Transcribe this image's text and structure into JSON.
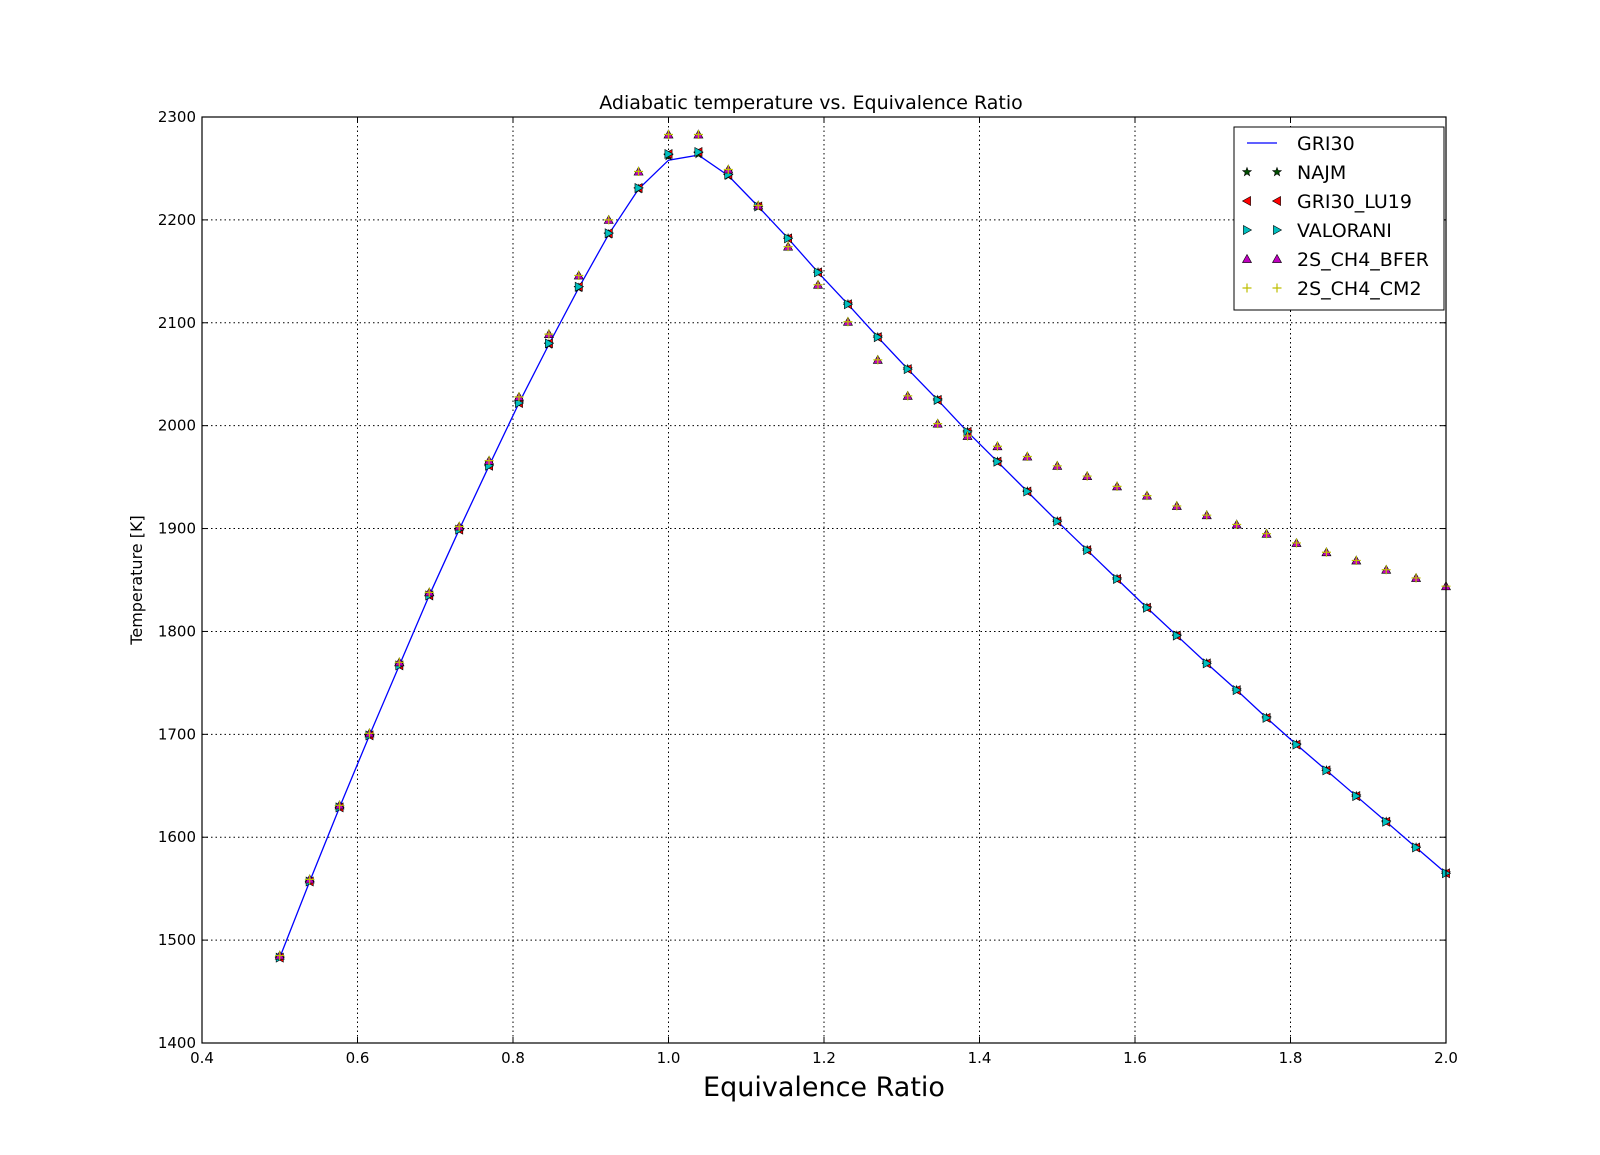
{
  "chart_data": {
    "type": "line",
    "title": "Adiabatic temperature vs. Equivalence Ratio",
    "xlabel": "Equivalence Ratio",
    "ylabel": "Temperature [K]",
    "xlim": [
      0.4,
      2.0
    ],
    "ylim": [
      1400,
      2300
    ],
    "xticks": [
      "0.4",
      "0.6",
      "0.8",
      "1.0",
      "1.2",
      "1.4",
      "1.6",
      "1.8",
      "2.0"
    ],
    "yticks": [
      "1400",
      "1500",
      "1600",
      "1700",
      "1800",
      "1900",
      "2000",
      "2100",
      "2200",
      "2300"
    ],
    "grid": true,
    "legend_position": "top-right",
    "x": [
      0.5,
      0.5385,
      0.5769,
      0.6154,
      0.6538,
      0.6923,
      0.7308,
      0.7692,
      0.8077,
      0.8462,
      0.8846,
      0.9231,
      0.9615,
      1.0,
      1.0385,
      1.0769,
      1.1154,
      1.1538,
      1.1923,
      1.2308,
      1.2692,
      1.3077,
      1.3462,
      1.3846,
      1.4231,
      1.4615,
      1.5,
      1.5385,
      1.5769,
      1.6154,
      1.6538,
      1.6923,
      1.7308,
      1.7692,
      1.8077,
      1.8462,
      1.8846,
      1.9231,
      1.9615,
      2.0
    ],
    "series": [
      {
        "name": "GRI30",
        "style": "line",
        "color": "#0000ff",
        "values": [
          1483,
          1557,
          1629,
          1699,
          1767,
          1835,
          1899,
          1961,
          2022,
          2079,
          2134,
          2186,
          2230,
          2258,
          2263,
          2243,
          2213,
          2182,
          2149,
          2118,
          2086,
          2055,
          2025,
          1994,
          1965,
          1936,
          1907,
          1879,
          1851,
          1823,
          1796,
          1769,
          1743,
          1716,
          1690,
          1665,
          1640,
          1615,
          1590,
          1565
        ]
      },
      {
        "name": "NAJM",
        "style": "marker",
        "marker": "star",
        "color": "#005000",
        "values": [
          1483,
          1557,
          1629,
          1699,
          1767,
          1835,
          1899,
          1961,
          2022,
          2079,
          2134,
          2186,
          2230,
          2262,
          2264,
          2243,
          2213,
          2182,
          2149,
          2118,
          2086,
          2055,
          2025,
          1994,
          1965,
          1936,
          1907,
          1879,
          1851,
          1823,
          1796,
          1769,
          1743,
          1716,
          1690,
          1665,
          1640,
          1615,
          1590,
          1565
        ]
      },
      {
        "name": "GRI30_LU19",
        "style": "marker",
        "marker": "triangle-left",
        "color": "#ff0000",
        "values": [
          1483,
          1557,
          1629,
          1699,
          1767,
          1835,
          1899,
          1961,
          2022,
          2080,
          2135,
          2187,
          2231,
          2264,
          2266,
          2244,
          2213,
          2182,
          2149,
          2118,
          2086,
          2055,
          2025,
          1994,
          1965,
          1936,
          1907,
          1879,
          1851,
          1823,
          1796,
          1769,
          1743,
          1716,
          1690,
          1665,
          1640,
          1615,
          1590,
          1565
        ]
      },
      {
        "name": "VALORANI",
        "style": "marker",
        "marker": "triangle-right",
        "color": "#00bfbf",
        "values": [
          1483,
          1557,
          1629,
          1699,
          1767,
          1835,
          1899,
          1961,
          2022,
          2080,
          2135,
          2187,
          2231,
          2264,
          2266,
          2244,
          2213,
          2182,
          2149,
          2118,
          2086,
          2055,
          2025,
          1994,
          1965,
          1936,
          1907,
          1879,
          1851,
          1823,
          1796,
          1769,
          1743,
          1716,
          1690,
          1665,
          1640,
          1615,
          1590,
          1565
        ]
      },
      {
        "name": "2S_CH4_BFER",
        "style": "marker",
        "marker": "triangle-up",
        "color": "#bf00bf",
        "values": [
          1485,
          1559,
          1631,
          1701,
          1770,
          1838,
          1902,
          1966,
          2028,
          2089,
          2146,
          2200,
          2247,
          2283,
          2283,
          2249,
          2214,
          2174,
          2137,
          2101,
          2064,
          2029,
          2002,
          1990,
          1980,
          1970,
          1961,
          1951,
          1941,
          1932,
          1922,
          1913,
          1904,
          1895,
          1886,
          1877,
          1869,
          1860,
          1852,
          1844
        ]
      },
      {
        "name": "2S_CH4_CM2",
        "style": "marker",
        "marker": "plus",
        "color": "#bfbf00",
        "values": [
          1485,
          1559,
          1631,
          1701,
          1770,
          1838,
          1902,
          1966,
          2028,
          2089,
          2146,
          2200,
          2247,
          2283,
          2283,
          2249,
          2214,
          2174,
          2137,
          2101,
          2064,
          2029,
          2002,
          1990,
          1980,
          1970,
          1961,
          1951,
          1941,
          1932,
          1922,
          1913,
          1904,
          1895,
          1886,
          1877,
          1869,
          1860,
          1852,
          1844
        ]
      }
    ]
  }
}
